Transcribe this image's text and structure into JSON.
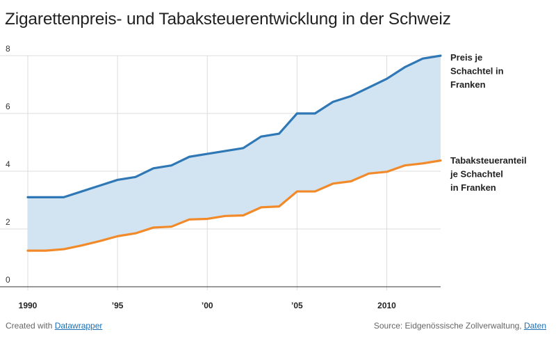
{
  "title": "Zigarettenpreis- und Tabaksteuerentwicklung in der Schweiz",
  "footer": {
    "created_prefix": "Created with ",
    "created_link": "Datawrapper",
    "source_prefix": "Source: Eidgenössische Zollverwaltung, ",
    "source_link": "Daten"
  },
  "chart_data": {
    "type": "area",
    "x": [
      1990,
      1991,
      1992,
      1993,
      1994,
      1995,
      1996,
      1997,
      1998,
      1999,
      2000,
      2001,
      2002,
      2003,
      2004,
      2005,
      2006,
      2007,
      2008,
      2009,
      2010,
      2011,
      2012,
      2013
    ],
    "x_ticks": [
      {
        "value": 1990,
        "label": "1990"
      },
      {
        "value": 1995,
        "label": "’95"
      },
      {
        "value": 2000,
        "label": "’00"
      },
      {
        "value": 2005,
        "label": "’05"
      },
      {
        "value": 2010,
        "label": "2010"
      }
    ],
    "y_ticks": [
      {
        "value": 0,
        "label": "0"
      },
      {
        "value": 2,
        "label": "2"
      },
      {
        "value": 4,
        "label": "4"
      },
      {
        "value": 6,
        "label": "6"
      },
      {
        "value": 8,
        "label": "8"
      }
    ],
    "ylim": [
      0,
      8
    ],
    "xlim": [
      1990,
      2013
    ],
    "fill_between": true,
    "grid": true,
    "series": [
      {
        "name": "Preis je Schachtel in Franken",
        "label_lines": [
          "Preis je",
          "Schachtel in",
          "Franken"
        ],
        "color": "#2f78b5",
        "values": [
          3.1,
          3.1,
          3.1,
          3.3,
          3.5,
          3.7,
          3.8,
          4.1,
          4.2,
          4.5,
          4.6,
          4.7,
          4.8,
          5.2,
          5.3,
          6.0,
          6.0,
          6.4,
          6.6,
          6.9,
          7.2,
          7.6,
          7.9,
          8.0
        ]
      },
      {
        "name": "Tabaksteueranteil je Schachtel in Franken",
        "label_lines": [
          "Tabaksteueranteil",
          "je Schachtel",
          "in Franken"
        ],
        "color": "#f28a2a",
        "values": [
          1.25,
          1.25,
          1.3,
          1.43,
          1.58,
          1.75,
          1.85,
          2.05,
          2.08,
          2.33,
          2.35,
          2.45,
          2.47,
          2.75,
          2.78,
          3.3,
          3.3,
          3.57,
          3.65,
          3.92,
          3.98,
          4.2,
          4.27,
          4.37
        ]
      }
    ],
    "fill_color": "#d2e4f1"
  }
}
